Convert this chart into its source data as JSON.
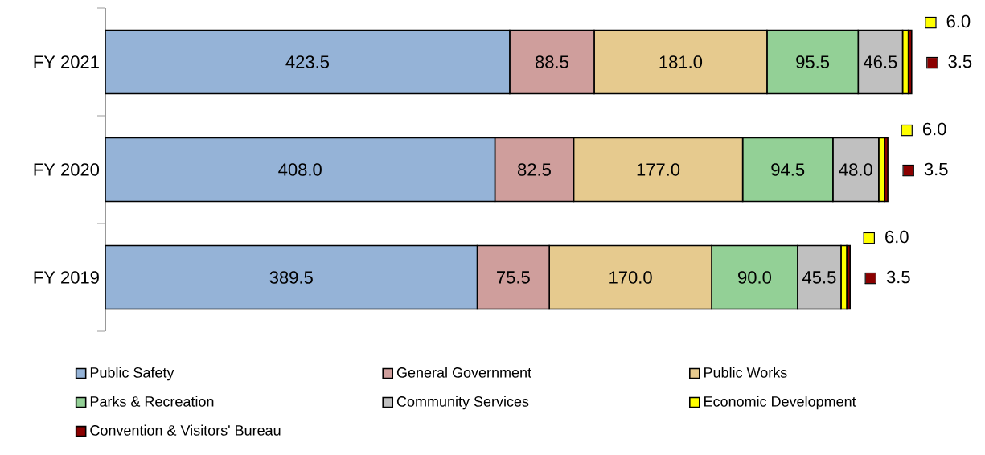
{
  "chart_data": {
    "type": "bar",
    "orientation": "horizontal",
    "stacked": true,
    "legend": "bottom",
    "categories": [
      "FY 2021",
      "FY 2020",
      "FY 2019"
    ],
    "series": [
      {
        "name": "Public Safety",
        "color": "#95b3d7",
        "values": [
          423.5,
          408.0,
          389.5
        ],
        "value_labels": [
          "423.5",
          "408.0",
          "389.5"
        ]
      },
      {
        "name": "General Government",
        "color": "#cf9e9c",
        "values": [
          88.5,
          82.5,
          75.5
        ],
        "value_labels": [
          "88.5",
          "82.5",
          "75.5"
        ]
      },
      {
        "name": "Public Works",
        "color": "#e6ca8e",
        "values": [
          181.0,
          177.0,
          170.0
        ],
        "value_labels": [
          "181.0",
          "177.0",
          "170.0"
        ]
      },
      {
        "name": "Parks & Recreation",
        "color": "#93d096",
        "values": [
          95.5,
          94.5,
          90.0
        ],
        "value_labels": [
          "95.5",
          "94.5",
          "90.0"
        ]
      },
      {
        "name": "Community Services",
        "color": "#c0c0c0",
        "values": [
          46.5,
          48.0,
          45.5
        ],
        "value_labels": [
          "46.5",
          "48.0",
          "45.5"
        ]
      },
      {
        "name": "Economic Development",
        "color": "#ffff00",
        "values": [
          6.0,
          6.0,
          6.0
        ],
        "value_labels": [
          "6.0",
          "6.0",
          "6.0"
        ]
      },
      {
        "name": "Convention & Visitors' Bureau",
        "color": "#8b0000",
        "values": [
          3.5,
          3.5,
          3.5
        ],
        "value_labels": [
          "3.5",
          "3.5",
          "3.5"
        ]
      }
    ]
  }
}
